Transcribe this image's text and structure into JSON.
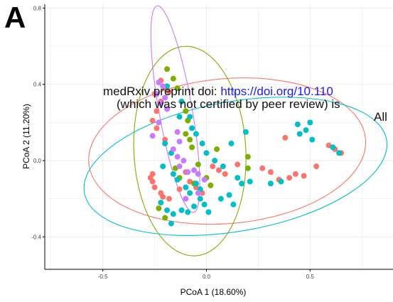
{
  "panel_label": "A",
  "watermark": {
    "line1_prefix": "medRxiv preprint doi: ",
    "line1_link": "https://doi.org/10.110",
    "line2": "(which was not certified by peer review) is",
    "line3": "All"
  },
  "colors": {
    "red": "#F8766D",
    "green": "#7CAE00",
    "teal": "#00BFC4",
    "purple": "#C77CFF",
    "grid": "#ebebeb",
    "axis": "#000000"
  },
  "chart_data": {
    "type": "scatter",
    "title": "",
    "xlabel": "PCoA 1 (18.60%)",
    "ylabel": "PCoA 2 (11.20%)",
    "xlim": [
      -0.78,
      0.9
    ],
    "ylim": [
      -0.57,
      0.82
    ],
    "xticks": [
      -0.5,
      0.0,
      0.5
    ],
    "xtick_labels": [
      "-0.5",
      "0.0",
      "0.5"
    ],
    "yticks": [
      -0.4,
      0.0,
      0.4,
      0.8
    ],
    "ytick_labels": [
      "-0.4",
      "0.0",
      "0.4",
      "0.8"
    ],
    "grid": true,
    "legend": "none",
    "series": [
      {
        "color": "#F8766D",
        "points": [
          [
            -0.22,
            0.42
          ],
          [
            -0.2,
            0.38
          ],
          [
            -0.18,
            0.36
          ],
          [
            -0.25,
            0.35
          ],
          [
            -0.22,
            0.31
          ],
          [
            -0.24,
            0.26
          ],
          [
            -0.26,
            0.21
          ],
          [
            -0.24,
            0.17
          ],
          [
            -0.2,
            0.11
          ],
          [
            -0.26,
            -0.07
          ],
          [
            -0.27,
            -0.09
          ],
          [
            -0.26,
            -0.11
          ],
          [
            -0.25,
            -0.14
          ],
          [
            -0.22,
            -0.17
          ],
          [
            -0.21,
            -0.19
          ],
          [
            -0.18,
            -0.2
          ],
          [
            -0.13,
            -0.15
          ],
          [
            -0.1,
            -0.06
          ],
          [
            -0.08,
            -0.11
          ],
          [
            -0.05,
            -0.14
          ],
          [
            -0.02,
            -0.17
          ],
          [
            0.03,
            -0.03
          ],
          [
            0.06,
            -0.05
          ],
          [
            0.09,
            -0.07
          ],
          [
            0.27,
            -0.04
          ],
          [
            0.31,
            -0.06
          ],
          [
            0.35,
            -0.1
          ],
          [
            0.4,
            -0.09
          ],
          [
            0.43,
            -0.07
          ],
          [
            0.47,
            -0.08
          ],
          [
            0.53,
            -0.03
          ],
          [
            0.59,
            0.08
          ],
          [
            0.62,
            0.06
          ],
          [
            0.65,
            0.04
          ],
          [
            0.38,
            0.12
          ],
          [
            0.15,
            -0.02
          ]
        ]
      },
      {
        "color": "#7CAE00",
        "points": [
          [
            -0.19,
            0.48
          ],
          [
            -0.16,
            0.43
          ],
          [
            -0.14,
            0.38
          ],
          [
            -0.12,
            0.31
          ],
          [
            -0.1,
            0.26
          ],
          [
            -0.09,
            0.21
          ],
          [
            -0.1,
            0.14
          ],
          [
            -0.08,
            0.11
          ],
          [
            -0.07,
            0.07
          ],
          [
            -0.15,
            -0.04
          ],
          [
            -0.13,
            -0.09
          ],
          [
            -0.06,
            -0.12
          ],
          [
            -0.04,
            -0.02
          ],
          [
            0.0,
            -0.09
          ],
          [
            0.02,
            -0.13
          ],
          [
            0.05,
            0.06
          ],
          [
            0.2,
            0.02
          ],
          [
            0.2,
            -0.04
          ],
          [
            -0.23,
            -0.25
          ],
          [
            -0.2,
            -0.3
          ]
        ]
      },
      {
        "color": "#00BFC4",
        "points": [
          [
            -0.19,
            0.39
          ],
          [
            -0.12,
            0.31
          ],
          [
            -0.13,
            0.23
          ],
          [
            -0.08,
            0.23
          ],
          [
            -0.07,
            0.17
          ],
          [
            -0.05,
            0.14
          ],
          [
            -0.2,
            0.09
          ],
          [
            -0.17,
            0.04
          ],
          [
            -0.21,
            -0.03
          ],
          [
            -0.16,
            -0.07
          ],
          [
            -0.14,
            -0.1
          ],
          [
            -0.1,
            -0.14
          ],
          [
            -0.08,
            -0.17
          ],
          [
            -0.05,
            -0.12
          ],
          [
            -0.03,
            -0.15
          ],
          [
            -0.06,
            -0.24
          ],
          [
            -0.09,
            -0.27
          ],
          [
            -0.22,
            -0.22
          ],
          [
            -0.19,
            -0.26
          ],
          [
            -0.17,
            -0.33
          ],
          [
            -0.12,
            -0.26
          ],
          [
            -0.03,
            -0.2
          ],
          [
            -0.01,
            -0.23
          ],
          [
            0.01,
            -0.27
          ],
          [
            0.07,
            -0.2
          ],
          [
            0.11,
            -0.18
          ],
          [
            0.13,
            -0.23
          ],
          [
            0.15,
            -0.09
          ],
          [
            0.17,
            -0.12
          ],
          [
            0.21,
            -0.11
          ],
          [
            0.12,
            0.09
          ],
          [
            0.19,
            0.15
          ],
          [
            0.04,
            0.0
          ],
          [
            0.0,
            0.04
          ],
          [
            -0.02,
            0.09
          ],
          [
            0.31,
            -0.12
          ],
          [
            0.36,
            -0.11
          ],
          [
            0.44,
            0.19
          ],
          [
            0.5,
            0.2
          ],
          [
            0.48,
            0.16
          ],
          [
            0.51,
            0.11
          ],
          [
            0.45,
            0.14
          ],
          [
            0.61,
            0.07
          ],
          [
            0.64,
            0.04
          ],
          [
            0.08,
            -0.03
          ],
          [
            -0.16,
            -0.28
          ]
        ]
      },
      {
        "color": "#C77CFF",
        "points": [
          [
            -0.23,
            0.41
          ],
          [
            -0.21,
            0.39
          ],
          [
            -0.24,
            0.35
          ],
          [
            -0.2,
            0.33
          ],
          [
            -0.22,
            0.3
          ],
          [
            -0.19,
            0.27
          ],
          [
            -0.23,
            0.2
          ],
          [
            -0.14,
            0.15
          ],
          [
            -0.13,
            0.1
          ],
          [
            -0.16,
            0.06
          ],
          [
            -0.14,
            0.02
          ],
          [
            -0.11,
            0.0
          ],
          [
            -0.13,
            -0.03
          ],
          [
            -0.09,
            -0.06
          ],
          [
            -0.06,
            -0.05
          ],
          [
            -0.04,
            -0.07
          ],
          [
            -0.01,
            -0.1
          ],
          [
            -0.04,
            -0.17
          ],
          [
            -0.1,
            -0.2
          ],
          [
            -0.26,
            0.13
          ]
        ]
      }
    ],
    "ellipses": [
      {
        "color": "#F8766D",
        "cx": 0.1,
        "cy": 0.05,
        "rx": 0.67,
        "ry": 0.38,
        "angle_deg": 5
      },
      {
        "color": "#7CAE00",
        "cx": -0.08,
        "cy": 0.05,
        "rx": 0.27,
        "ry": 0.55,
        "angle_deg": 3
      },
      {
        "color": "#00BFC4",
        "cx": 0.14,
        "cy": -0.03,
        "rx": 0.74,
        "ry": 0.34,
        "angle_deg": 10
      },
      {
        "color": "#C77CFF",
        "cx": -0.15,
        "cy": 0.27,
        "rx": 0.08,
        "ry": 0.55,
        "angle_deg": 10
      }
    ]
  }
}
